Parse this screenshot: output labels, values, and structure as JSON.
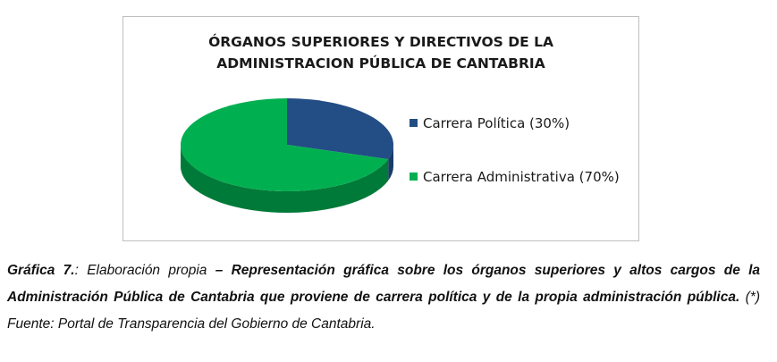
{
  "chart_data": {
    "type": "pie",
    "title_lines": [
      "ÓRGANOS SUPERIORES Y DIRECTIVOS DE LA",
      "ADMINISTRACION PÚBLICA DE CANTABRIA"
    ],
    "series": [
      {
        "name": "Carrera Política (30%)",
        "value": 30,
        "color": "#234d85",
        "side_color": "#1a3b66"
      },
      {
        "name": "Carrera Administrativa (70%)",
        "value": 70,
        "color": "#00b050",
        "side_color": "#007a38"
      }
    ],
    "legend_position": "right"
  },
  "caption": {
    "lead_bold": "Gráfica 7.",
    "lead_rest": ": Elaboración propia",
    "dash": " – ",
    "main_bold": "Representación gráfica sobre los órganos superiores y altos cargos de la Administración Pública de Cantabria que proviene de  carrera política y de la propia administración pública",
    "dot": ".",
    "source": " (*) Fuente: Portal de Transparencia del Gobierno de Cantabria."
  }
}
